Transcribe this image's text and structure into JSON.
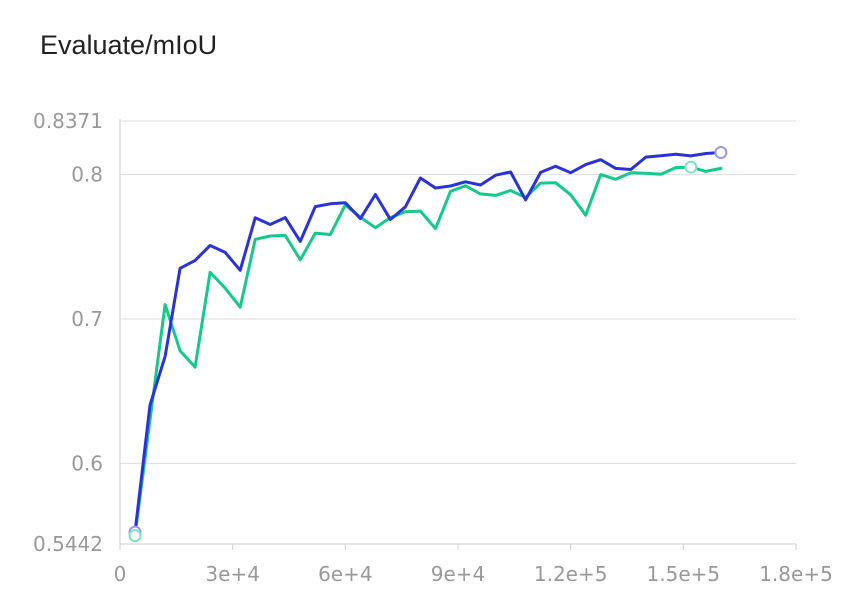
{
  "chart_data": {
    "type": "line",
    "title": "Evaluate/mIoU",
    "xlabel": "",
    "ylabel": "",
    "xlim": [
      0,
      180000
    ],
    "ylim": [
      0.5442,
      0.8371
    ],
    "xticks": [
      0,
      30000,
      60000,
      90000,
      120000,
      150000,
      180000
    ],
    "xtick_labels": [
      "0",
      "3e+4",
      "6e+4",
      "9e+4",
      "1.2e+5",
      "1.5e+5",
      "1.8e+5"
    ],
    "yticks": [
      0.5442,
      0.6,
      0.7,
      0.8,
      0.8371
    ],
    "ytick_labels": [
      "0.5442",
      "0.6",
      "0.7",
      "0.8",
      "0.8371"
    ],
    "grid": true,
    "series": [
      {
        "color": "#2b33d8",
        "marker_color": "#9a9ae8",
        "x": [
          4000,
          8000,
          12000,
          16000,
          20000,
          24000,
          28000,
          32000,
          36000,
          40000,
          44000,
          48000,
          52000,
          56000,
          60000,
          64000,
          68000,
          72000,
          76000,
          80000,
          84000,
          88000,
          92000,
          96000,
          100000,
          104000,
          108000,
          112000,
          116000,
          120000,
          124000,
          128000,
          132000,
          136000,
          140000,
          144000,
          148000,
          152000,
          156000,
          160000
        ],
        "y": [
          0.5524,
          0.6404,
          0.6741,
          0.7351,
          0.7406,
          0.7509,
          0.7461,
          0.7337,
          0.7701,
          0.7654,
          0.7702,
          0.7537,
          0.7778,
          0.7798,
          0.7805,
          0.7695,
          0.7862,
          0.7689,
          0.7777,
          0.7976,
          0.7907,
          0.7921,
          0.795,
          0.7928,
          0.7996,
          0.8018,
          0.7825,
          0.8015,
          0.8058,
          0.8013,
          0.8069,
          0.8103,
          0.8043,
          0.8035,
          0.8121,
          0.813,
          0.8141,
          0.8129,
          0.8146,
          0.8153
        ]
      },
      {
        "color": "#14c88e",
        "marker_color": "#7fe0c2",
        "x": [
          4000,
          8000,
          12000,
          16000,
          20000,
          24000,
          28000,
          32000,
          36000,
          40000,
          44000,
          48000,
          52000,
          56000,
          60000,
          64000,
          68000,
          72000,
          76000,
          80000,
          84000,
          88000,
          92000,
          96000,
          100000,
          104000,
          108000,
          112000,
          116000,
          120000,
          124000,
          128000,
          132000,
          136000,
          140000,
          144000,
          148000,
          152000,
          156000,
          160000
        ],
        "y": [
          0.55,
          0.63,
          0.71,
          0.678,
          0.6667,
          0.7323,
          0.7213,
          0.7082,
          0.7551,
          0.7575,
          0.7579,
          0.741,
          0.7595,
          0.7585,
          0.779,
          0.7705,
          0.7632,
          0.7702,
          0.7743,
          0.7747,
          0.7626,
          0.7884,
          0.7922,
          0.7866,
          0.7856,
          0.789,
          0.7841,
          0.7941,
          0.7944,
          0.786,
          0.7719,
          0.8,
          0.7967,
          0.8013,
          0.8009,
          0.8002,
          0.8048,
          0.8052,
          0.8022,
          0.8043
        ]
      }
    ],
    "end_markers": [
      {
        "series": 0,
        "point": 0
      },
      {
        "series": 0,
        "point": 39
      },
      {
        "series": 1,
        "point": 0
      },
      {
        "series": 1,
        "point": 37
      }
    ]
  }
}
